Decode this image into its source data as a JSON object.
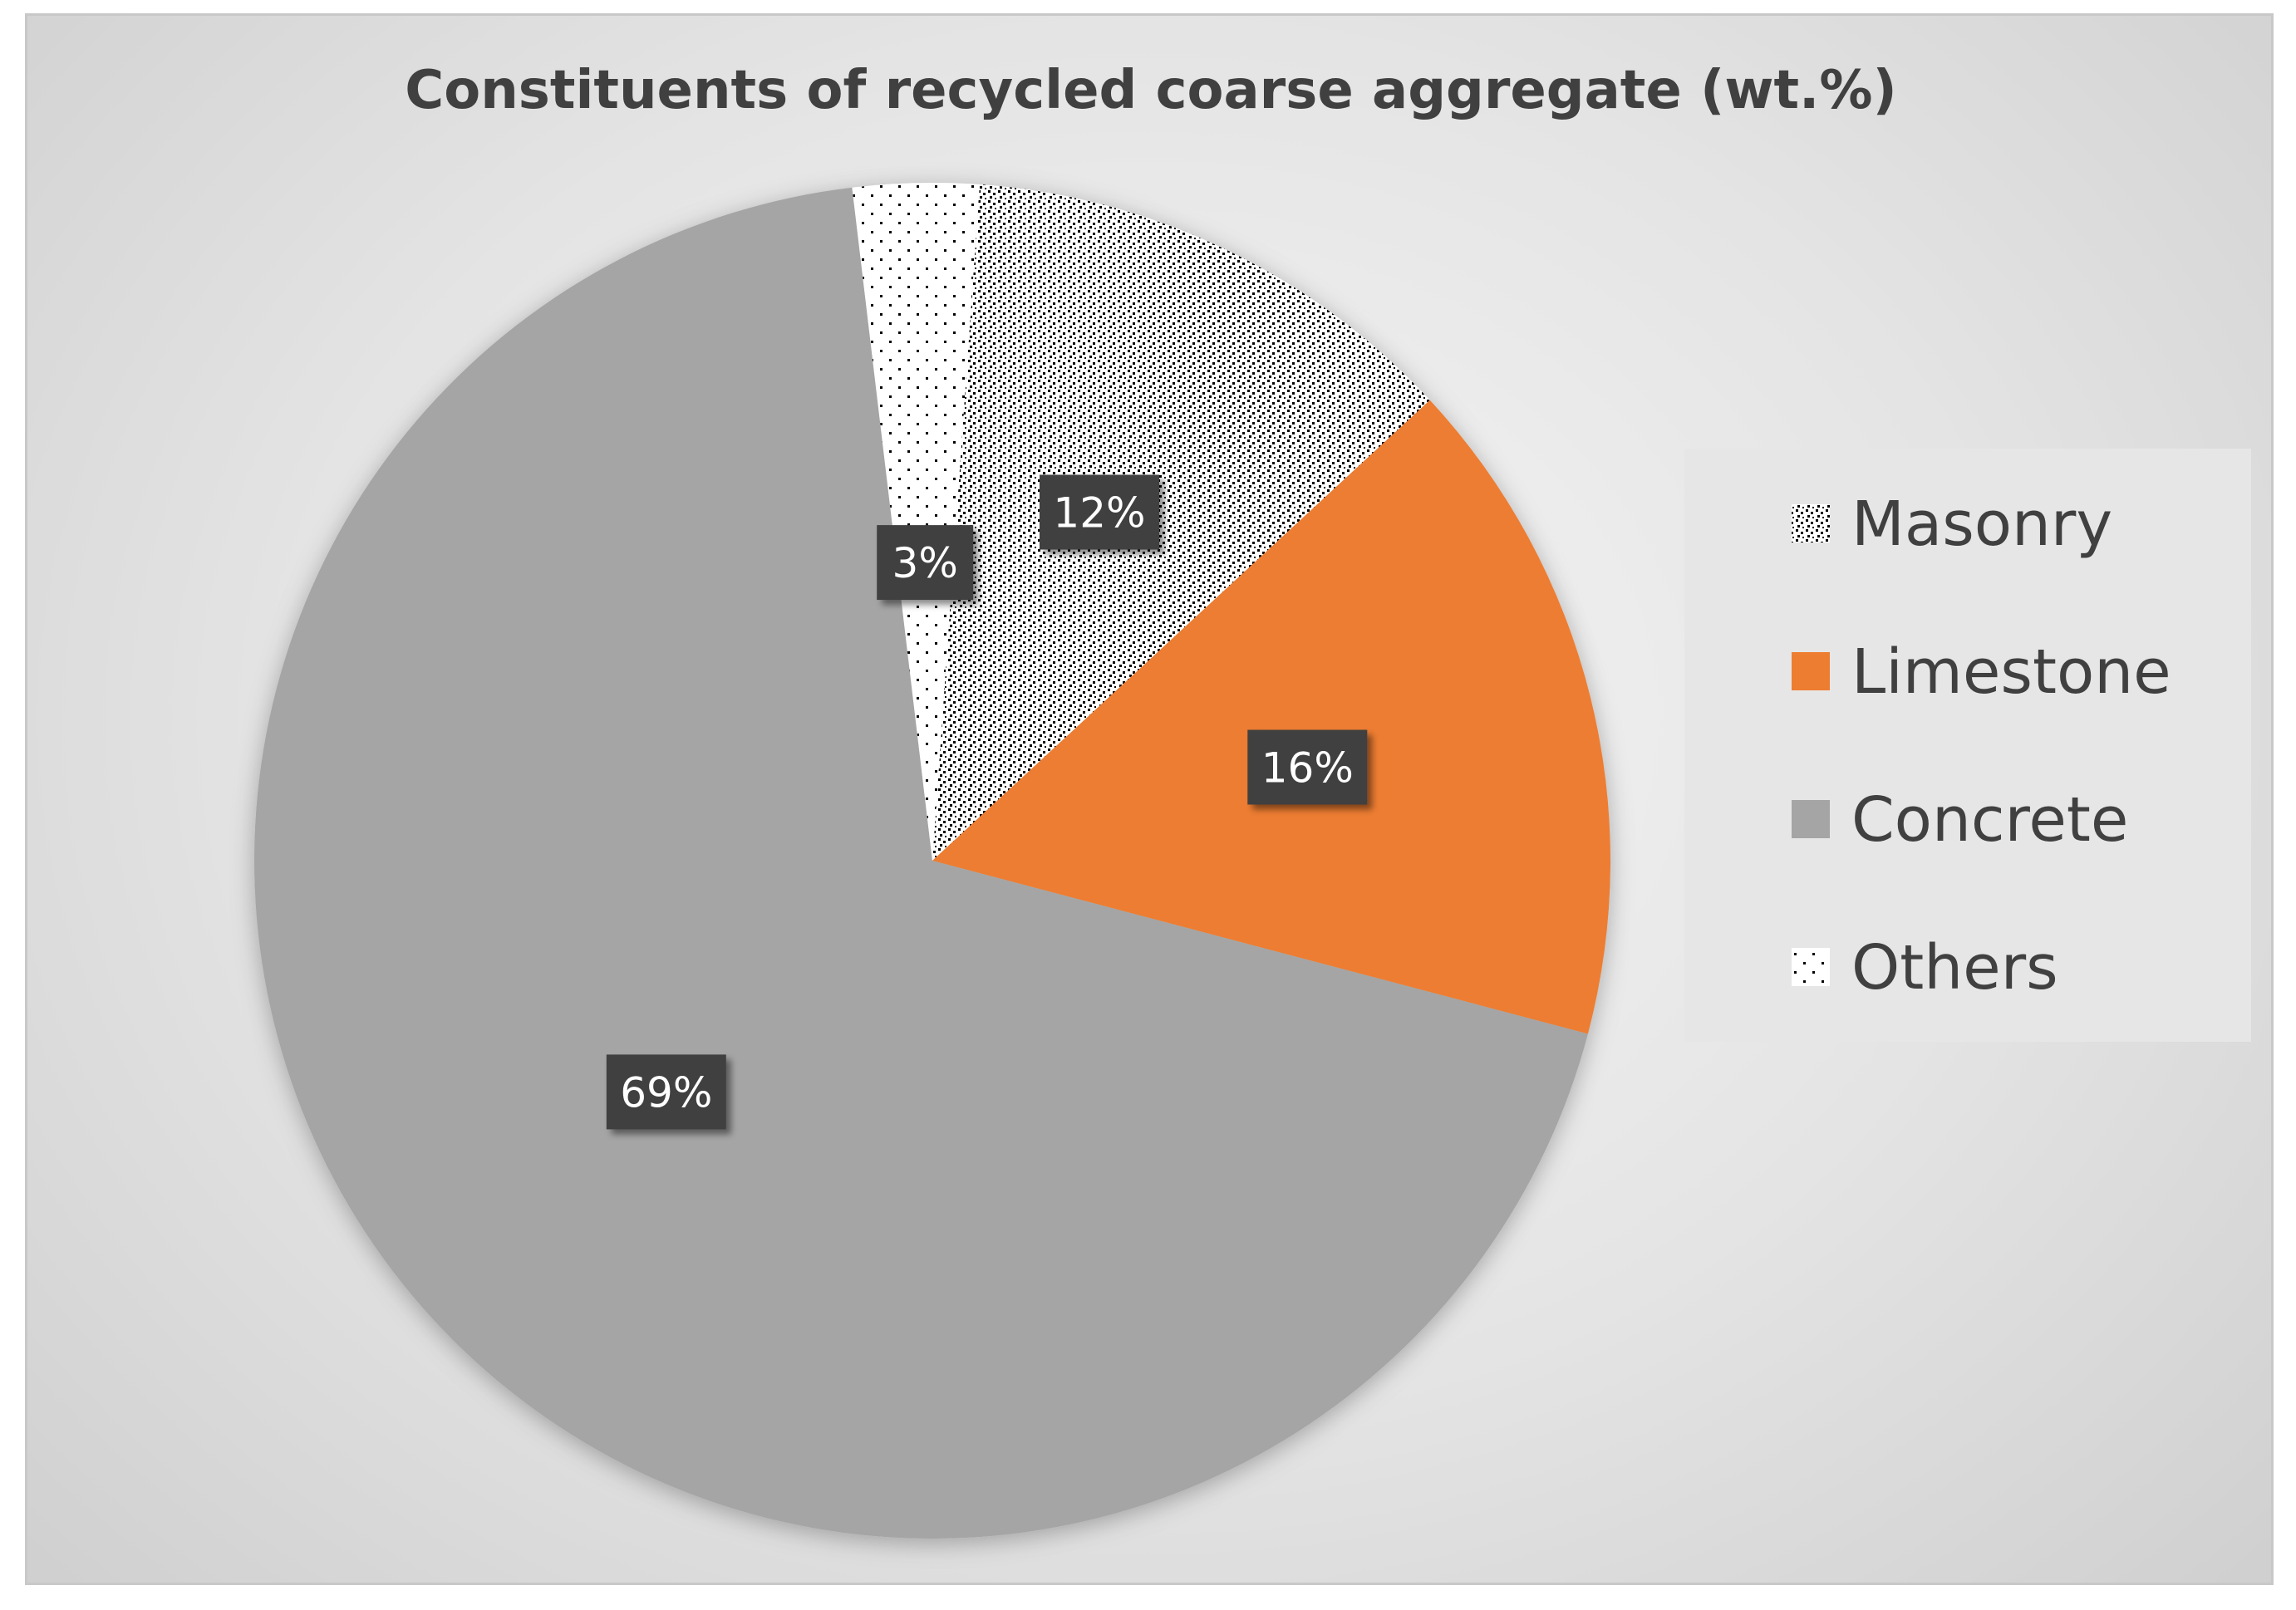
{
  "chart_data": {
    "type": "pie",
    "title": "Constituents of recycled coarse aggregate (wt.%)",
    "slices": [
      {
        "name": "Masonry",
        "value": 12,
        "label": "12%",
        "fill": "pattern-masonry"
      },
      {
        "name": "Limestone",
        "value": 16,
        "label": "16%",
        "color": "#ED7D31"
      },
      {
        "name": "Concrete",
        "value": 69,
        "label": "69%",
        "color": "#A5A5A5"
      },
      {
        "name": "Others",
        "value": 3,
        "label": "3%",
        "fill": "pattern-others"
      }
    ],
    "start_angle_deg": 4,
    "direction": "clockwise",
    "legend": {
      "position": "right",
      "entries": [
        "Masonry",
        "Limestone",
        "Concrete",
        "Others"
      ]
    },
    "data_label_style": "dark-box"
  }
}
